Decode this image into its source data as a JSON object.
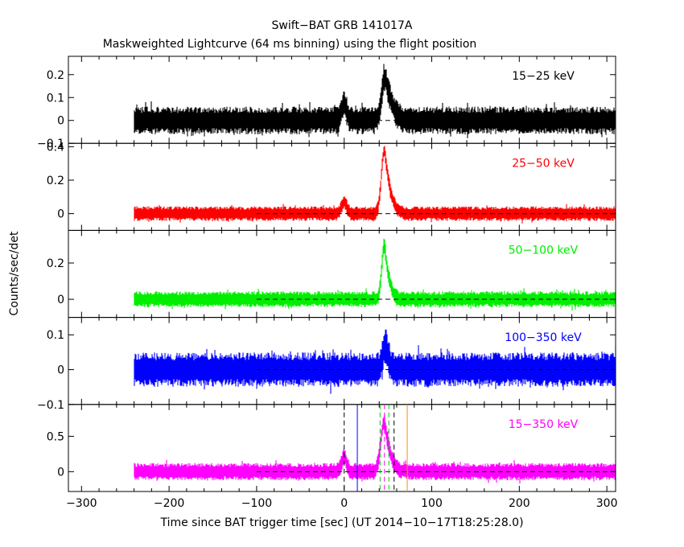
{
  "chart_data": {
    "type": "line",
    "title": "Swift−BAT GRB 141017A",
    "subtitle": "Maskweighted Lightcurve (64 ms binning) using the flight position",
    "xlabel": "Time since BAT trigger time [sec] (UT 2014−10−17T18:25:28.0)",
    "ylabel": "Counts/sec/det",
    "xlim": [
      -315,
      310
    ],
    "x_ticks": [
      -300,
      -200,
      -100,
      0,
      100,
      200,
      300
    ],
    "x_tick_labels": [
      "−300",
      "−200",
      "−100",
      "0",
      "100",
      "200",
      "300"
    ],
    "data_range": [
      -240,
      310
    ],
    "background_line_from": -100,
    "panels": [
      {
        "band": "15−25 keV",
        "color": "#000000",
        "ylim": [
          -0.1,
          0.28
        ],
        "y_ticks": [
          -0.1,
          0,
          0.1,
          0.2
        ],
        "y_tick_labels": [
          "−0.1",
          "0",
          "0.1",
          "0.2"
        ],
        "noise_amplitude": 0.055,
        "features": [
          {
            "t": 0,
            "peak": 0.07,
            "width": 3
          },
          {
            "t": 47,
            "peak": 0.19,
            "width": 4,
            "tail": 10
          }
        ]
      },
      {
        "band": "25−50 keV",
        "color": "#ff0000",
        "ylim": [
          -0.1,
          0.42
        ],
        "y_ticks": [
          0,
          0.2,
          0.4
        ],
        "y_tick_labels": [
          "0",
          "0.2",
          "0.4"
        ],
        "noise_amplitude": 0.04,
        "features": [
          {
            "t": 0,
            "peak": 0.07,
            "width": 3
          },
          {
            "t": 46,
            "peak": 0.38,
            "width": 3.5,
            "tail": 9
          }
        ]
      },
      {
        "band": "50−100 keV",
        "color": "#00ee00",
        "ylim": [
          -0.1,
          0.38
        ],
        "y_ticks": [
          0,
          0.2
        ],
        "y_tick_labels": [
          "0",
          "0.2"
        ],
        "noise_amplitude": 0.04,
        "features": [
          {
            "t": 46,
            "peak": 0.3,
            "width": 3,
            "tail": 7
          }
        ]
      },
      {
        "band": "100−350 keV",
        "color": "#0000ff",
        "ylim": [
          -0.1,
          0.15
        ],
        "y_ticks": [
          -0.1,
          0,
          0.1
        ],
        "y_tick_labels": [
          "−0.1",
          "0",
          "0.1"
        ],
        "noise_amplitude": 0.045,
        "features": [
          {
            "t": 47,
            "peak": 0.07,
            "width": 3
          }
        ]
      },
      {
        "band": "15−350 keV",
        "color": "#ff00ff",
        "ylim": [
          -0.28,
          0.95
        ],
        "y_ticks": [
          0,
          0.5
        ],
        "y_tick_labels": [
          "0",
          "0.5"
        ],
        "noise_amplitude": 0.11,
        "features": [
          {
            "t": 0,
            "peak": 0.2,
            "width": 3
          },
          {
            "t": 46,
            "peak": 0.72,
            "width": 4,
            "tail": 8
          }
        ]
      }
    ],
    "markers": [
      {
        "t": 0,
        "color": "#000000",
        "style": "dashed",
        "span": "full"
      },
      {
        "t": 15,
        "color": "#0000ff",
        "style": "solid",
        "span": "full"
      },
      {
        "t": 41,
        "color": "#00cc00",
        "style": "dashed",
        "span": "full"
      },
      {
        "t": 46,
        "color": "#ff00ff",
        "style": "dashed",
        "span": "full"
      },
      {
        "t": 51,
        "color": "#00cc00",
        "style": "dashed",
        "span": "full"
      },
      {
        "t": 57,
        "color": "#000000",
        "style": "dashed",
        "span": "full"
      },
      {
        "t": 72,
        "color": "#ff8c00",
        "style": "solid",
        "span": "full"
      }
    ],
    "grid": false,
    "legend": "none"
  }
}
